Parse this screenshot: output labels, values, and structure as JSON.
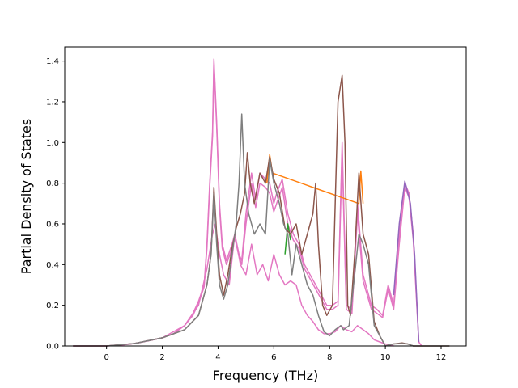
{
  "chart_data": {
    "type": "line",
    "title": "",
    "xlabel": "Frequency (THz)",
    "ylabel": "Partial Density of States",
    "xlim": [
      -1.5,
      12.9
    ],
    "ylim": [
      0.0,
      1.47
    ],
    "xticks": [
      0,
      2,
      4,
      6,
      8,
      10,
      12
    ],
    "yticks": [
      0.0,
      0.2,
      0.4,
      0.6,
      0.8,
      1.0,
      1.2,
      1.4
    ],
    "xtick_labels": [
      "0",
      "2",
      "4",
      "6",
      "8",
      "10",
      "12"
    ],
    "ytick_labels": [
      "0.0",
      "0.2",
      "0.4",
      "0.6",
      "0.8",
      "1.0",
      "1.2",
      "1.4"
    ],
    "grid": false,
    "legend": "none",
    "series": [
      {
        "color": "#e377c2",
        "points": [
          [
            -1.2,
            0
          ],
          [
            0,
            0
          ],
          [
            0.5,
            0.004
          ],
          [
            1,
            0.012
          ],
          [
            1.5,
            0.025
          ],
          [
            2,
            0.04
          ],
          [
            2.4,
            0.06
          ],
          [
            2.8,
            0.1
          ],
          [
            3.1,
            0.16
          ],
          [
            3.3,
            0.22
          ],
          [
            3.5,
            0.3
          ],
          [
            3.6,
            0.5
          ],
          [
            3.7,
            0.8
          ],
          [
            3.8,
            1.05
          ],
          [
            3.85,
            1.41
          ],
          [
            3.95,
            1.1
          ],
          [
            4.05,
            0.7
          ],
          [
            4.15,
            0.5
          ],
          [
            4.3,
            0.42
          ],
          [
            4.5,
            0.5
          ],
          [
            4.6,
            0.55
          ],
          [
            4.75,
            0.45
          ],
          [
            4.85,
            0.42
          ],
          [
            5.0,
            0.65
          ],
          [
            5.2,
            0.85
          ],
          [
            5.35,
            0.72
          ],
          [
            5.5,
            0.85
          ],
          [
            5.7,
            0.82
          ],
          [
            5.85,
            0.8
          ],
          [
            6.0,
            0.7
          ],
          [
            6.1,
            0.75
          ],
          [
            6.3,
            0.82
          ],
          [
            6.5,
            0.65
          ],
          [
            6.7,
            0.55
          ],
          [
            6.9,
            0.5
          ],
          [
            7.1,
            0.4
          ],
          [
            7.3,
            0.35
          ],
          [
            7.5,
            0.3
          ],
          [
            7.7,
            0.25
          ],
          [
            7.9,
            0.2
          ],
          [
            8.1,
            0.2
          ],
          [
            8.3,
            0.22
          ],
          [
            8.45,
            1.0
          ],
          [
            8.6,
            0.2
          ],
          [
            8.8,
            0.18
          ],
          [
            9.0,
            0.7
          ],
          [
            9.2,
            0.35
          ],
          [
            9.5,
            0.2
          ],
          [
            9.7,
            0.18
          ],
          [
            9.9,
            0.15
          ],
          [
            10.1,
            0.3
          ],
          [
            10.3,
            0.2
          ],
          [
            10.5,
            0.55
          ],
          [
            10.7,
            0.8
          ],
          [
            10.85,
            0.75
          ],
          [
            11.0,
            0.55
          ],
          [
            11.2,
            0.02
          ],
          [
            11.3,
            0
          ]
        ]
      },
      {
        "color": "#e377c2",
        "points": [
          [
            -1.2,
            0
          ],
          [
            0,
            0
          ],
          [
            0.5,
            0.004
          ],
          [
            1,
            0.012
          ],
          [
            1.5,
            0.025
          ],
          [
            2,
            0.04
          ],
          [
            2.4,
            0.06
          ],
          [
            2.8,
            0.1
          ],
          [
            3.1,
            0.15
          ],
          [
            3.3,
            0.21
          ],
          [
            3.5,
            0.29
          ],
          [
            3.6,
            0.48
          ],
          [
            3.7,
            0.78
          ],
          [
            3.8,
            1.03
          ],
          [
            3.85,
            1.39
          ],
          [
            3.95,
            1.08
          ],
          [
            4.05,
            0.68
          ],
          [
            4.15,
            0.48
          ],
          [
            4.3,
            0.4
          ],
          [
            4.5,
            0.48
          ],
          [
            4.6,
            0.53
          ],
          [
            4.75,
            0.44
          ],
          [
            4.85,
            0.4
          ],
          [
            5.0,
            0.6
          ],
          [
            5.2,
            0.8
          ],
          [
            5.35,
            0.68
          ],
          [
            5.5,
            0.8
          ],
          [
            5.7,
            0.78
          ],
          [
            5.85,
            0.75
          ],
          [
            6.0,
            0.66
          ],
          [
            6.1,
            0.7
          ],
          [
            6.3,
            0.78
          ],
          [
            6.5,
            0.6
          ],
          [
            6.7,
            0.52
          ],
          [
            6.9,
            0.48
          ],
          [
            7.1,
            0.38
          ],
          [
            7.3,
            0.33
          ],
          [
            7.5,
            0.28
          ],
          [
            7.7,
            0.23
          ],
          [
            7.9,
            0.18
          ],
          [
            8.1,
            0.18
          ],
          [
            8.3,
            0.2
          ],
          [
            8.45,
            0.95
          ],
          [
            8.6,
            0.18
          ],
          [
            8.8,
            0.16
          ],
          [
            9.0,
            0.65
          ],
          [
            9.2,
            0.32
          ],
          [
            9.5,
            0.18
          ],
          [
            9.7,
            0.16
          ],
          [
            9.9,
            0.14
          ],
          [
            10.1,
            0.28
          ],
          [
            10.3,
            0.18
          ],
          [
            10.5,
            0.5
          ],
          [
            10.7,
            0.78
          ],
          [
            10.85,
            0.73
          ],
          [
            11.0,
            0.52
          ],
          [
            11.2,
            0.02
          ],
          [
            11.3,
            0
          ]
        ]
      },
      {
        "color": "#9467bd",
        "points": [
          [
            10.3,
            0.25
          ],
          [
            10.5,
            0.6
          ],
          [
            10.7,
            0.81
          ],
          [
            10.9,
            0.7
          ],
          [
            11.05,
            0.45
          ],
          [
            11.2,
            0.02
          ]
        ]
      },
      {
        "color": "#e377c2",
        "points": [
          [
            -1.2,
            0
          ],
          [
            0,
            0
          ],
          [
            1,
            0.012
          ],
          [
            2,
            0.04
          ],
          [
            2.8,
            0.1
          ],
          [
            3.3,
            0.2
          ],
          [
            3.6,
            0.38
          ],
          [
            3.8,
            0.55
          ],
          [
            3.9,
            0.6
          ],
          [
            4.05,
            0.45
          ],
          [
            4.2,
            0.35
          ],
          [
            4.4,
            0.3
          ],
          [
            4.6,
            0.55
          ],
          [
            4.8,
            0.4
          ],
          [
            5.0,
            0.35
          ],
          [
            5.2,
            0.5
          ],
          [
            5.4,
            0.35
          ],
          [
            5.6,
            0.4
          ],
          [
            5.8,
            0.32
          ],
          [
            6.0,
            0.45
          ],
          [
            6.2,
            0.35
          ],
          [
            6.4,
            0.3
          ],
          [
            6.6,
            0.32
          ],
          [
            6.8,
            0.3
          ],
          [
            7.0,
            0.2
          ],
          [
            7.2,
            0.15
          ],
          [
            7.4,
            0.12
          ],
          [
            7.6,
            0.08
          ],
          [
            7.8,
            0.06
          ],
          [
            8.0,
            0.06
          ],
          [
            8.2,
            0.07
          ],
          [
            8.4,
            0.1
          ],
          [
            8.6,
            0.08
          ],
          [
            8.8,
            0.07
          ],
          [
            9.0,
            0.1
          ],
          [
            9.2,
            0.08
          ],
          [
            9.4,
            0.06
          ],
          [
            9.6,
            0.03
          ],
          [
            9.8,
            0.02
          ],
          [
            10.0,
            0.01
          ],
          [
            10.3,
            0.0
          ]
        ]
      },
      {
        "color": "#2ca02c",
        "points": [
          [
            6.4,
            0.45
          ],
          [
            6.5,
            0.6
          ],
          [
            6.6,
            0.52
          ]
        ]
      },
      {
        "color": "#ff7f0e",
        "points": [
          [
            5.75,
            0.8
          ],
          [
            5.85,
            0.94
          ],
          [
            5.95,
            0.85
          ],
          [
            9.05,
            0.7
          ],
          [
            9.12,
            0.86
          ],
          [
            9.2,
            0.7
          ]
        ]
      },
      {
        "color": "#8c564b",
        "points": [
          [
            -1.2,
            0
          ],
          [
            0,
            0
          ],
          [
            1,
            0.012
          ],
          [
            2,
            0.04
          ],
          [
            2.8,
            0.08
          ],
          [
            3.3,
            0.15
          ],
          [
            3.6,
            0.3
          ],
          [
            3.75,
            0.45
          ],
          [
            3.85,
            0.78
          ],
          [
            3.95,
            0.55
          ],
          [
            4.05,
            0.35
          ],
          [
            4.2,
            0.25
          ],
          [
            4.35,
            0.35
          ],
          [
            4.5,
            0.48
          ],
          [
            4.65,
            0.58
          ],
          [
            4.8,
            0.65
          ],
          [
            4.95,
            0.75
          ],
          [
            5.05,
            0.95
          ],
          [
            5.15,
            0.8
          ],
          [
            5.3,
            0.7
          ],
          [
            5.5,
            0.85
          ],
          [
            5.7,
            0.8
          ],
          [
            5.85,
            0.93
          ],
          [
            6.0,
            0.82
          ],
          [
            6.2,
            0.75
          ],
          [
            6.4,
            0.58
          ],
          [
            6.6,
            0.55
          ],
          [
            6.8,
            0.6
          ],
          [
            7.0,
            0.45
          ],
          [
            7.2,
            0.55
          ],
          [
            7.4,
            0.65
          ],
          [
            7.5,
            0.8
          ],
          [
            7.6,
            0.5
          ],
          [
            7.75,
            0.2
          ],
          [
            7.9,
            0.15
          ],
          [
            8.1,
            0.2
          ],
          [
            8.3,
            1.2
          ],
          [
            8.45,
            1.33
          ],
          [
            8.55,
            1.0
          ],
          [
            8.65,
            0.2
          ],
          [
            8.75,
            0.15
          ],
          [
            8.9,
            0.45
          ],
          [
            9.05,
            0.85
          ],
          [
            9.2,
            0.55
          ],
          [
            9.4,
            0.45
          ],
          [
            9.6,
            0.12
          ],
          [
            9.8,
            0.05
          ],
          [
            10.0,
            0.0
          ],
          [
            10.3,
            0.01
          ],
          [
            10.6,
            0.015
          ],
          [
            10.8,
            0.01
          ],
          [
            11.0,
            0.0
          ],
          [
            12.3,
            0
          ]
        ]
      },
      {
        "color": "#7f7f7f",
        "points": [
          [
            -1.2,
            0
          ],
          [
            0,
            0
          ],
          [
            1,
            0.012
          ],
          [
            2,
            0.04
          ],
          [
            2.8,
            0.08
          ],
          [
            3.3,
            0.15
          ],
          [
            3.6,
            0.3
          ],
          [
            3.75,
            0.45
          ],
          [
            3.85,
            0.75
          ],
          [
            3.95,
            0.5
          ],
          [
            4.05,
            0.3
          ],
          [
            4.2,
            0.23
          ],
          [
            4.35,
            0.3
          ],
          [
            4.5,
            0.45
          ],
          [
            4.65,
            0.6
          ],
          [
            4.75,
            0.8
          ],
          [
            4.85,
            1.14
          ],
          [
            4.95,
            0.8
          ],
          [
            5.1,
            0.65
          ],
          [
            5.3,
            0.55
          ],
          [
            5.5,
            0.6
          ],
          [
            5.7,
            0.55
          ],
          [
            5.85,
            0.92
          ],
          [
            6.0,
            0.8
          ],
          [
            6.2,
            0.7
          ],
          [
            6.35,
            0.6
          ],
          [
            6.5,
            0.55
          ],
          [
            6.65,
            0.35
          ],
          [
            6.8,
            0.5
          ],
          [
            7.0,
            0.4
          ],
          [
            7.2,
            0.3
          ],
          [
            7.4,
            0.25
          ],
          [
            7.6,
            0.15
          ],
          [
            7.8,
            0.07
          ],
          [
            8.0,
            0.05
          ],
          [
            8.2,
            0.08
          ],
          [
            8.4,
            0.1
          ],
          [
            8.5,
            0.08
          ],
          [
            8.7,
            0.1
          ],
          [
            8.9,
            0.35
          ],
          [
            9.05,
            0.55
          ],
          [
            9.2,
            0.5
          ],
          [
            9.4,
            0.4
          ],
          [
            9.6,
            0.1
          ],
          [
            9.8,
            0.05
          ],
          [
            10.0,
            0.0
          ],
          [
            10.3,
            0.01
          ],
          [
            10.6,
            0.012
          ],
          [
            10.8,
            0.01
          ],
          [
            11.0,
            0.0
          ],
          [
            12.3,
            0
          ]
        ]
      }
    ]
  }
}
